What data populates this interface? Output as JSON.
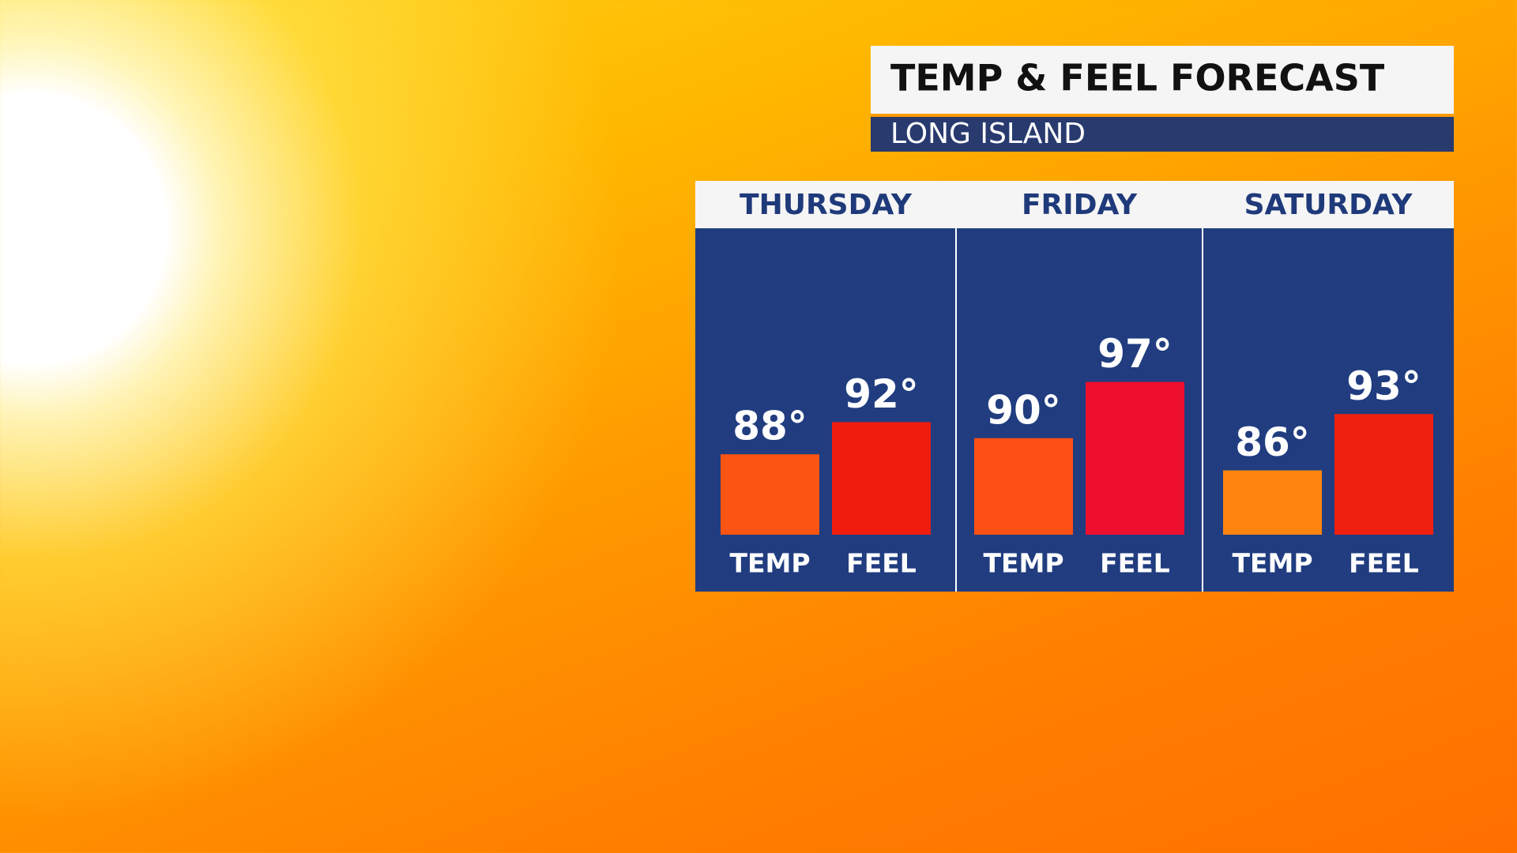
{
  "chart_data": {
    "type": "bar",
    "title": "TEMP & FEEL FORECAST",
    "subtitle": "LONG ISLAND",
    "categories": [
      "THURSDAY",
      "FRIDAY",
      "SATURDAY"
    ],
    "ylim": [
      78,
      100
    ],
    "series": [
      {
        "name": "TEMP",
        "values": [
          88,
          90,
          86
        ],
        "value_labels": [
          "88°",
          "90°",
          "86°"
        ],
        "colors": [
          "#fc5412",
          "#fc5015",
          "#fd850f"
        ]
      },
      {
        "name": "FEEL",
        "values": [
          92,
          97,
          93
        ],
        "value_labels": [
          "92°",
          "97°",
          "93°"
        ],
        "colors": [
          "#f01d0f",
          "#ee0f2f",
          "#f0200f"
        ]
      }
    ]
  }
}
